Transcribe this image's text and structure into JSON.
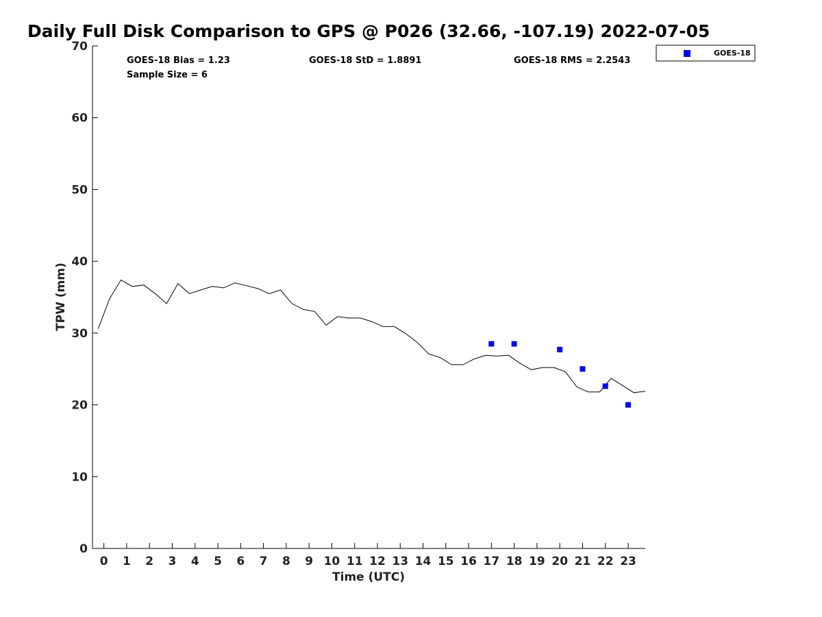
{
  "chart_data": {
    "type": "line",
    "title": "Daily Full Disk Comparison to GPS @ P026 (32.66, -107.19) 2022-07-05",
    "xlabel": "Time (UTC)",
    "ylabel": "TPW (mm)",
    "xlim": [
      -0.5,
      23.75
    ],
    "ylim": [
      0,
      70
    ],
    "xticks": [
      0,
      1,
      2,
      3,
      4,
      5,
      6,
      7,
      8,
      9,
      10,
      11,
      12,
      13,
      14,
      15,
      16,
      17,
      18,
      19,
      20,
      21,
      22,
      23
    ],
    "xtick_labels": [
      "0",
      "1",
      "2",
      "3",
      "4",
      "5",
      "6",
      "7",
      "8",
      "9",
      "10",
      "11",
      "12",
      "13",
      "14",
      "15",
      "16",
      "17",
      "18",
      "19",
      "20",
      "21",
      "22",
      "23"
    ],
    "yticks": [
      0,
      10,
      20,
      30,
      40,
      50,
      60,
      70
    ],
    "ytick_labels": [
      "0",
      "10",
      "20",
      "30",
      "40",
      "50",
      "60",
      "70"
    ],
    "grid": false,
    "legend_position": "top-right-outside",
    "stats": {
      "bias": "GOES-18 Bias = 1.23",
      "std": "GOES-18 StD = 1.8891",
      "rms": "GOES-18 RMS = 2.2543",
      "sample_size": "Sample Size = 6"
    },
    "series": [
      {
        "kind": "line",
        "color": "#000000",
        "x": [
          -0.25,
          0.25,
          0.75,
          1.25,
          1.75,
          2.25,
          2.75,
          3.25,
          3.75,
          4.25,
          4.75,
          5.25,
          5.75,
          6.25,
          6.75,
          7.25,
          7.75,
          8.25,
          8.75,
          9.25,
          9.75,
          10.25,
          10.75,
          11.25,
          11.75,
          12.25,
          12.75,
          13.25,
          13.75,
          14.25,
          14.75,
          15.25,
          15.75,
          16.25,
          16.75,
          17.25,
          17.75,
          18.25,
          18.75,
          19.25,
          19.75,
          20.25,
          20.75,
          21.25,
          21.75,
          22.25,
          22.75,
          23.25,
          23.75
        ],
        "y": [
          30.6,
          34.8,
          37.4,
          36.5,
          36.7,
          35.5,
          34.1,
          36.9,
          35.5,
          36.0,
          36.5,
          36.3,
          37.0,
          36.6,
          36.2,
          35.5,
          36.0,
          34.1,
          33.3,
          33.0,
          31.1,
          32.3,
          32.1,
          32.1,
          31.6,
          30.9,
          30.9,
          29.9,
          28.7,
          27.1,
          26.6,
          25.6,
          25.6,
          26.4,
          26.9,
          26.8,
          26.9,
          25.8,
          24.9,
          25.2,
          25.2,
          24.6,
          22.5,
          21.8,
          21.8,
          23.7,
          22.7,
          21.7,
          21.9
        ]
      },
      {
        "name": "GOES-18",
        "kind": "scatter",
        "color": "#0000ff",
        "marker": "square",
        "x": [
          17,
          18,
          20,
          21,
          22,
          23
        ],
        "y": [
          28.5,
          28.5,
          27.7,
          25.0,
          22.6,
          20.0
        ]
      }
    ]
  }
}
